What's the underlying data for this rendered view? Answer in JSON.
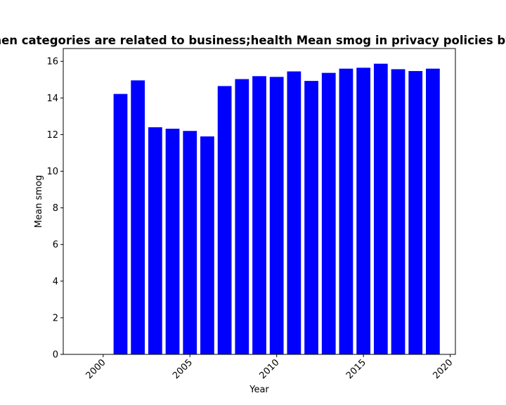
{
  "chart_data": {
    "type": "bar",
    "title": "hen categories are related to business;health Mean smog in privacy policies by Y",
    "xlabel": "Year",
    "ylabel": "Mean smog",
    "x": [
      2001,
      2002,
      2003,
      2004,
      2005,
      2006,
      2007,
      2008,
      2009,
      2010,
      2011,
      2012,
      2013,
      2014,
      2015,
      2016,
      2017,
      2018,
      2019
    ],
    "values": [
      14.22,
      14.96,
      12.4,
      12.32,
      12.2,
      11.9,
      14.65,
      15.03,
      15.19,
      15.15,
      15.45,
      14.93,
      15.37,
      15.6,
      15.65,
      15.87,
      15.57,
      15.47,
      15.6
    ],
    "xlim": [
      1997.7,
      2020.3
    ],
    "ylim": [
      0,
      16.7
    ],
    "xticks": [
      "2000",
      "2005",
      "2010",
      "2015",
      "2020"
    ],
    "yticks": [
      "0",
      "2",
      "4",
      "6",
      "8",
      "10",
      "12",
      "14",
      "16"
    ],
    "bar_color": "#0000ff",
    "grid": false,
    "legend": "none"
  }
}
